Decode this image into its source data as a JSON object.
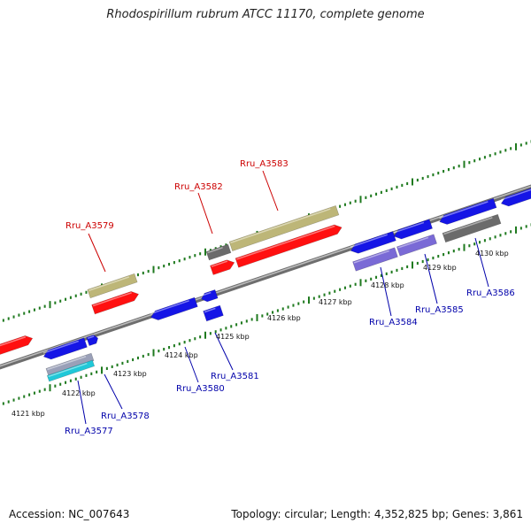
{
  "title": "Rhodospirillum rubrum ATCC 11170, complete genome",
  "footer": {
    "accession": "Accession: NC_007643",
    "topology": "Topology: circular; Length: 4,352,825 bp; Genes: 3,861"
  },
  "colors": {
    "backbone": "#8c8c8c",
    "tick_green": "#1f7a1f",
    "label_red": "#cc0000",
    "label_blue": "#0000aa",
    "gene_red": "#ff1010",
    "gene_blue": "#1515e6",
    "gene_khaki": "#bdb678",
    "gene_gray": "#6b6b6b",
    "gene_purple": "#7a6ad6",
    "gene_cyan": "#20c8d8"
  },
  "scale_labels": [
    "4121 kbp",
    "4122 kbp",
    "4123 kbp",
    "4124 kbp",
    "4125 kbp",
    "4126 kbp",
    "4127 kbp",
    "4128 kbp",
    "4129 kbp",
    "4130 kbp"
  ],
  "genes_top": [
    {
      "id": "Rru_A3579",
      "label": "Rru_A3579"
    },
    {
      "id": "Rru_A3582",
      "label": "Rru_A3582"
    },
    {
      "id": "Rru_A3583",
      "label": "Rru_A3583"
    }
  ],
  "genes_bottom": [
    {
      "id": "Rru_A3577",
      "label": "Rru_A3577"
    },
    {
      "id": "Rru_A3578",
      "label": "Rru_A3578"
    },
    {
      "id": "Rru_A3580",
      "label": "Rru_A3580"
    },
    {
      "id": "Rru_A3581",
      "label": "Rru_A3581"
    },
    {
      "id": "Rru_A3584",
      "label": "Rru_A3584"
    },
    {
      "id": "Rru_A3585",
      "label": "Rru_A3585"
    },
    {
      "id": "Rru_A3586",
      "label": "Rru_A3586"
    }
  ]
}
